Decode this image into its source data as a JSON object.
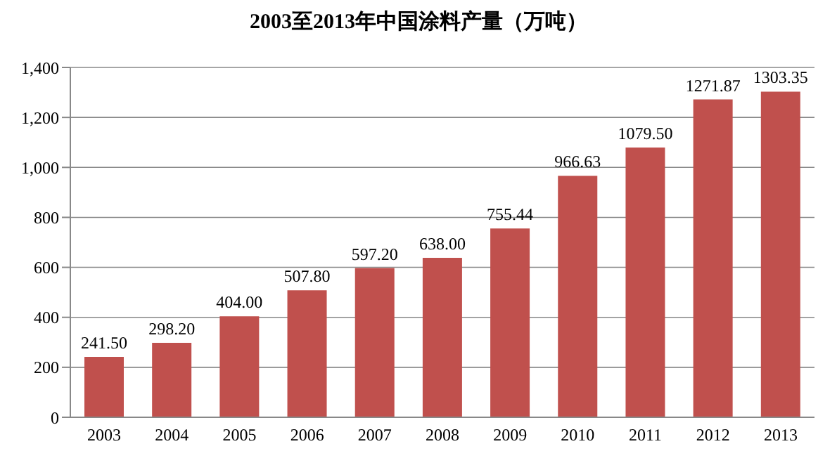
{
  "chart_data": {
    "type": "bar",
    "title": "2003至2013年中国涂料产量（万吨）",
    "categories": [
      "2003",
      "2004",
      "2005",
      "2006",
      "2007",
      "2008",
      "2009",
      "2010",
      "2011",
      "2012",
      "2013"
    ],
    "values": [
      241.5,
      298.2,
      404.0,
      507.8,
      597.2,
      638.0,
      755.44,
      966.63,
      1079.5,
      1271.87,
      1303.35
    ],
    "value_labels": [
      "241.50",
      "298.20",
      "404.00",
      "507.80",
      "597.20",
      "638.00",
      "755.44",
      "966.63",
      "1079.50",
      "1271.87",
      "1303.35"
    ],
    "color": "#c0504d",
    "ylim": [
      0,
      1400
    ],
    "yticks": [
      0,
      200,
      400,
      600,
      800,
      {
        "value": 1000,
        "label": "1,000"
      },
      {
        "value": 1200,
        "label": "1,200"
      },
      {
        "value": 1400,
        "label": "1,400"
      }
    ],
    "grid": "y"
  }
}
